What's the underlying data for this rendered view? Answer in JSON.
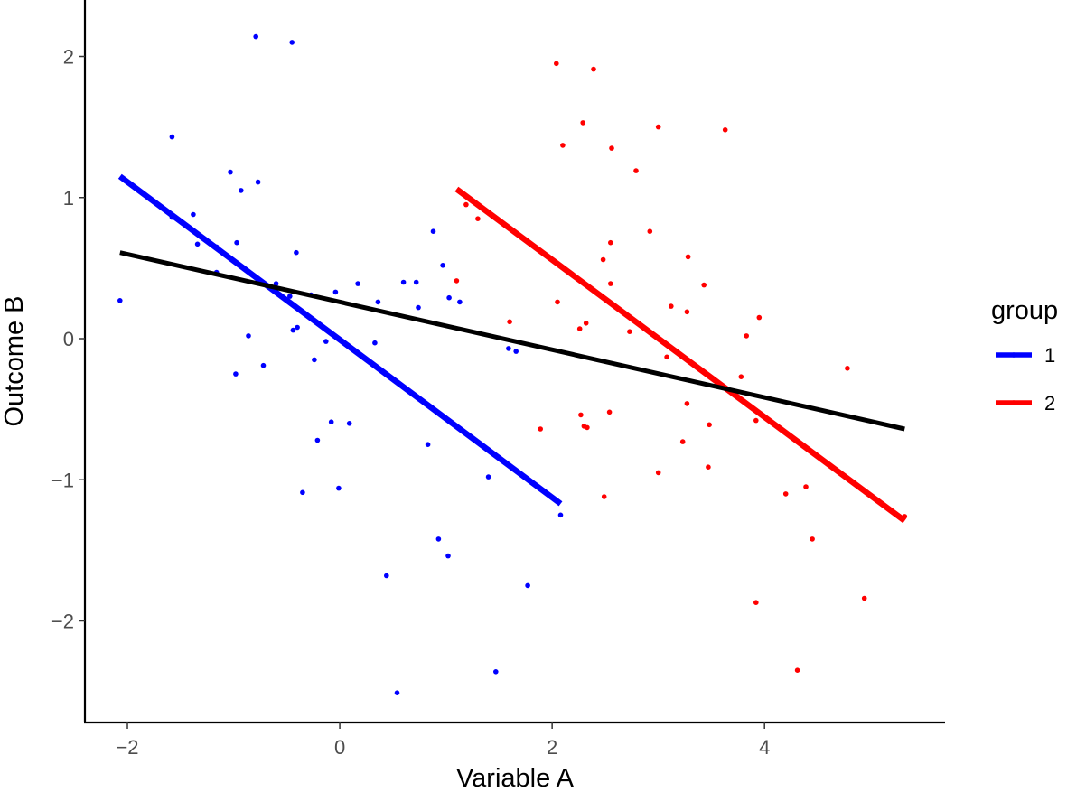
{
  "chart_data": {
    "type": "scatter",
    "title": "",
    "xlabel": "Variable A",
    "ylabel": "Outcome B",
    "xlim": [
      -2.4,
      5.7
    ],
    "ylim": [
      -2.72,
      2.4
    ],
    "x_ticks": [
      -2,
      0,
      2,
      4
    ],
    "y_ticks": [
      -2,
      -1,
      0,
      1,
      2
    ],
    "x_tick_labels": [
      "−2",
      "0",
      "2",
      "4"
    ],
    "y_tick_labels": [
      "−2",
      "−1",
      "0",
      "1",
      "2"
    ],
    "grid": false,
    "legend": {
      "title": "group",
      "position": "right",
      "entries": [
        {
          "label": "1",
          "color": "#0000ff"
        },
        {
          "label": "2",
          "color": "#ff0000"
        }
      ]
    },
    "series": [
      {
        "name": "1",
        "color": "#0000ff",
        "points": [
          [
            -2.07,
            0.27
          ],
          [
            -1.58,
            1.43
          ],
          [
            -1.58,
            0.86
          ],
          [
            -1.38,
            0.88
          ],
          [
            -1.34,
            0.67
          ],
          [
            -1.16,
            0.65
          ],
          [
            -1.16,
            0.47
          ],
          [
            -1.03,
            1.18
          ],
          [
            -0.97,
            0.68
          ],
          [
            -0.98,
            -0.25
          ],
          [
            -0.93,
            1.05
          ],
          [
            -0.86,
            0.02
          ],
          [
            -0.79,
            2.14
          ],
          [
            -0.77,
            1.11
          ],
          [
            -0.72,
            -0.19
          ],
          [
            -0.6,
            0.39
          ],
          [
            -0.47,
            0.3
          ],
          [
            -0.45,
            2.1
          ],
          [
            -0.44,
            0.06
          ],
          [
            -0.41,
            0.61
          ],
          [
            -0.4,
            0.08
          ],
          [
            -0.35,
            -1.09
          ],
          [
            -0.27,
            0.31
          ],
          [
            -0.24,
            -0.15
          ],
          [
            -0.21,
            -0.72
          ],
          [
            -0.13,
            -0.02
          ],
          [
            -0.08,
            -0.59
          ],
          [
            -0.04,
            0.33
          ],
          [
            -0.01,
            -1.06
          ],
          [
            0.09,
            -0.6
          ],
          [
            0.17,
            0.39
          ],
          [
            0.33,
            -0.03
          ],
          [
            0.36,
            0.26
          ],
          [
            0.44,
            -1.68
          ],
          [
            0.54,
            -2.51
          ],
          [
            0.6,
            0.4
          ],
          [
            0.72,
            0.4
          ],
          [
            0.74,
            0.22
          ],
          [
            0.83,
            -0.75
          ],
          [
            0.88,
            0.76
          ],
          [
            0.93,
            -1.42
          ],
          [
            0.97,
            0.52
          ],
          [
            1.02,
            -1.54
          ],
          [
            1.03,
            0.29
          ],
          [
            1.13,
            0.26
          ],
          [
            1.4,
            -0.98
          ],
          [
            1.47,
            -2.36
          ],
          [
            1.59,
            -0.07
          ],
          [
            1.66,
            -0.09
          ],
          [
            1.77,
            -1.75
          ],
          [
            2.08,
            -1.25
          ]
        ],
        "fit": {
          "x": [
            -2.07,
            2.08
          ],
          "y": [
            1.15,
            -1.17
          ]
        }
      },
      {
        "name": "2",
        "color": "#ff0000",
        "points": [
          [
            1.1,
            0.41
          ],
          [
            1.19,
            0.95
          ],
          [
            1.3,
            0.85
          ],
          [
            1.6,
            0.12
          ],
          [
            1.89,
            -0.64
          ],
          [
            2.04,
            1.95
          ],
          [
            2.05,
            0.26
          ],
          [
            2.1,
            1.37
          ],
          [
            2.26,
            0.07
          ],
          [
            2.27,
            -0.54
          ],
          [
            2.29,
            1.53
          ],
          [
            2.3,
            -0.62
          ],
          [
            2.32,
            0.11
          ],
          [
            2.33,
            -0.63
          ],
          [
            2.39,
            1.91
          ],
          [
            2.48,
            0.56
          ],
          [
            2.49,
            -1.12
          ],
          [
            2.54,
            -0.52
          ],
          [
            2.55,
            0.68
          ],
          [
            2.55,
            0.39
          ],
          [
            2.56,
            1.35
          ],
          [
            2.73,
            0.05
          ],
          [
            2.79,
            1.19
          ],
          [
            2.92,
            0.76
          ],
          [
            3.0,
            -0.95
          ],
          [
            3.0,
            1.5
          ],
          [
            3.08,
            -0.13
          ],
          [
            3.12,
            0.23
          ],
          [
            3.23,
            -0.73
          ],
          [
            3.27,
            -0.46
          ],
          [
            3.27,
            0.19
          ],
          [
            3.28,
            0.58
          ],
          [
            3.43,
            0.38
          ],
          [
            3.47,
            -0.91
          ],
          [
            3.48,
            -0.61
          ],
          [
            3.63,
            1.48
          ],
          [
            3.78,
            -0.27
          ],
          [
            3.83,
            0.02
          ],
          [
            3.92,
            -0.58
          ],
          [
            3.92,
            -1.87
          ],
          [
            3.95,
            0.15
          ],
          [
            4.2,
            -1.1
          ],
          [
            4.31,
            -2.35
          ],
          [
            4.39,
            -1.05
          ],
          [
            4.45,
            -1.42
          ],
          [
            4.78,
            -0.21
          ],
          [
            4.94,
            -1.84
          ],
          [
            5.3,
            -1.27
          ],
          [
            5.32,
            -1.26
          ]
        ],
        "fit": {
          "x": [
            1.1,
            5.32
          ],
          "y": [
            1.06,
            -1.29
          ]
        }
      }
    ],
    "overall_fit": {
      "name": "all",
      "color": "#000000",
      "x": [
        -2.07,
        5.32
      ],
      "y": [
        0.61,
        -0.64
      ]
    }
  }
}
